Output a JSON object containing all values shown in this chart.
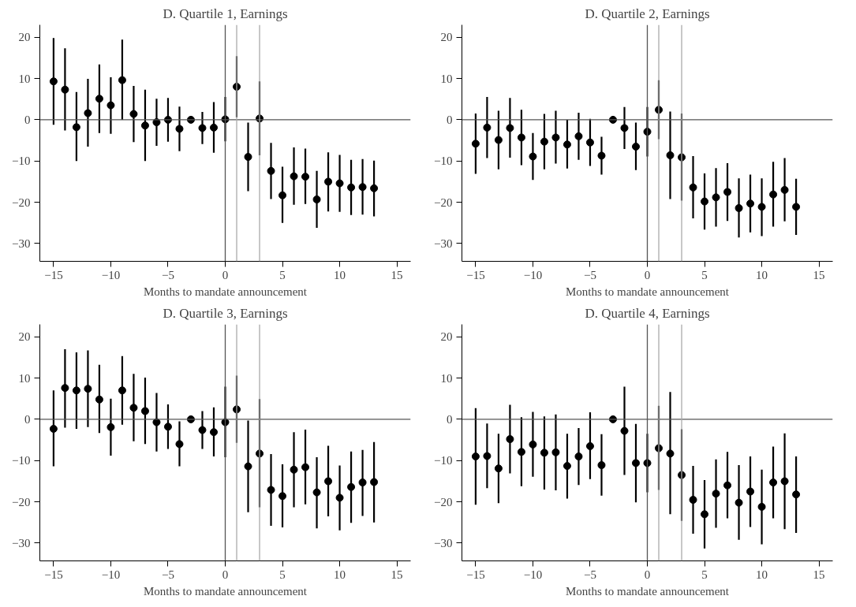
{
  "chart_data": [
    {
      "type": "scatter",
      "title": "D. Quartile 1, Earnings",
      "xlabel": "Months to mandate announcement",
      "marker": "circle",
      "color": "#000000",
      "x": [
        -15,
        -14,
        -13,
        -12,
        -11,
        -10,
        -9,
        -8,
        -7,
        -6,
        -5,
        -4,
        -3,
        -2,
        -1,
        0,
        1,
        2,
        3,
        4,
        5,
        6,
        7,
        8,
        9,
        10,
        11,
        12,
        13
      ],
      "values": [
        9.3,
        7.3,
        -1.8,
        1.6,
        5.1,
        3.5,
        9.6,
        1.4,
        -1.4,
        -0.6,
        0,
        -2.2,
        0,
        -2,
        -1.9,
        0.1,
        8,
        -9,
        0.3,
        -12.4,
        -18.3,
        -13.7,
        -13.8,
        -19.3,
        -15,
        -15.4,
        -16.4,
        -16.3,
        -16.6
      ],
      "errors": [
        [
          -1.2,
          19.8
        ],
        [
          -2.6,
          17.3
        ],
        [
          -10,
          6.7
        ],
        [
          -6.5,
          9.9
        ],
        [
          -3.2,
          13.4
        ],
        [
          -3.4,
          10.3
        ],
        [
          0,
          19.4
        ],
        [
          -5.4,
          8.2
        ],
        [
          -10,
          7.3
        ],
        [
          -6.3,
          5.1
        ],
        [
          -5.3,
          5.3
        ],
        [
          -7.6,
          3.2
        ],
        null,
        [
          -5.9,
          1.9
        ],
        [
          -8,
          4.3
        ],
        [
          -5.2,
          5.5
        ],
        [
          0.6,
          15.4
        ],
        [
          -17.3,
          -0.7
        ],
        [
          -8.6,
          9.3
        ],
        [
          -19.2,
          -5.6
        ],
        [
          -25,
          -11.4
        ],
        [
          -20.6,
          -6.7
        ],
        [
          -20.4,
          -7
        ],
        [
          -26.2,
          -12.4
        ],
        [
          -22.2,
          -7.9
        ],
        [
          -22.3,
          -8.5
        ],
        [
          -23.1,
          -9.7
        ],
        [
          -23,
          -9.5
        ],
        [
          -23.4,
          -9.9
        ]
      ],
      "xlim": [
        -16.2,
        16.2
      ],
      "xticks": [
        -15,
        -10,
        -5,
        0,
        5,
        10,
        15
      ],
      "ylim": [
        -34.3,
        23
      ],
      "yticks": [
        -30,
        -20,
        -10,
        0,
        10,
        20
      ],
      "ref_lines": [
        {
          "axis": "y",
          "value": 0,
          "color": "#555555"
        },
        {
          "axis": "x",
          "value": 0,
          "color": "#555555"
        },
        {
          "axis": "x",
          "value": 1,
          "color": "#aaaaaa"
        },
        {
          "axis": "x",
          "value": 3,
          "color": "#aaaaaa"
        }
      ]
    },
    {
      "type": "scatter",
      "title": "D. Quartile 2, Earnings",
      "xlabel": "Months to mandate announcement",
      "marker": "circle",
      "color": "#000000",
      "x": [
        -15,
        -14,
        -13,
        -12,
        -11,
        -10,
        -9,
        -8,
        -7,
        -6,
        -5,
        -4,
        -3,
        -2,
        -1,
        0,
        1,
        2,
        3,
        4,
        5,
        6,
        7,
        8,
        9,
        10,
        11,
        12,
        13
      ],
      "values": [
        -5.8,
        -1.9,
        -4.9,
        -2,
        -4.3,
        -8.9,
        -5.3,
        -4.3,
        -6,
        -4,
        -5.5,
        -8.7,
        0,
        -2,
        -6.5,
        -2.9,
        2.4,
        -8.6,
        -9.1,
        -16.4,
        -19.8,
        -18.8,
        -17.5,
        -21.4,
        -20.3,
        -21.1,
        -18.1,
        -17,
        -21.1
      ],
      "errors": [
        [
          -13.1,
          1.5
        ],
        [
          -9.3,
          5.5
        ],
        [
          -12,
          2.2
        ],
        [
          -9.2,
          5.3
        ],
        [
          -11,
          2.4
        ],
        [
          -14.6,
          -3.2
        ],
        [
          -12,
          1.4
        ],
        [
          -10.6,
          2.2
        ],
        [
          -11.8,
          0
        ],
        [
          -9.7,
          1.7
        ],
        [
          -11.2,
          0.2
        ],
        [
          -13.3,
          -4.1
        ],
        null,
        [
          -7.1,
          3.1
        ],
        [
          -12.2,
          -0.7
        ],
        [
          -8.9,
          3.1
        ],
        [
          -4.7,
          9.6
        ],
        [
          -19.2,
          2
        ],
        [
          -19.6,
          1.5
        ],
        [
          -23.9,
          -8.8
        ],
        [
          -26.6,
          -13
        ],
        [
          -25.9,
          -11.7
        ],
        [
          -24.5,
          -10.5
        ],
        [
          -28.5,
          -14.2
        ],
        [
          -27.3,
          -13.3
        ],
        [
          -28.2,
          -14.2
        ],
        [
          -25.9,
          -10.2
        ],
        [
          -24.6,
          -9.3
        ],
        [
          -27.9,
          -14.3
        ]
      ],
      "xlim": [
        -16.2,
        16.2
      ],
      "xticks": [
        -15,
        -10,
        -5,
        0,
        5,
        10,
        15
      ],
      "ylim": [
        -34.3,
        23
      ],
      "yticks": [
        -30,
        -20,
        -10,
        0,
        10,
        20
      ],
      "ref_lines": [
        {
          "axis": "y",
          "value": 0,
          "color": "#555555"
        },
        {
          "axis": "x",
          "value": 0,
          "color": "#555555"
        },
        {
          "axis": "x",
          "value": 1,
          "color": "#aaaaaa"
        },
        {
          "axis": "x",
          "value": 3,
          "color": "#aaaaaa"
        }
      ]
    },
    {
      "type": "scatter",
      "title": "D. Quartile 3, Earnings",
      "xlabel": "Months to mandate announcement",
      "marker": "circle",
      "color": "#000000",
      "x": [
        -15,
        -14,
        -13,
        -12,
        -11,
        -10,
        -9,
        -8,
        -7,
        -6,
        -5,
        -4,
        -3,
        -2,
        -1,
        0,
        1,
        2,
        3,
        4,
        5,
        6,
        7,
        8,
        9,
        10,
        11,
        12,
        13
      ],
      "values": [
        -2.3,
        7.6,
        7,
        7.4,
        4.8,
        -1.9,
        7,
        2.8,
        2,
        -0.7,
        -1.8,
        -6,
        0,
        -2.6,
        -3.1,
        -0.7,
        2.4,
        -11.4,
        -8.3,
        -17.1,
        -18.6,
        -12.2,
        -11.6,
        -17.7,
        -15,
        -19,
        -16.4,
        -15.3,
        -15.2
      ],
      "errors": [
        [
          -11.4,
          7
        ],
        [
          -2,
          17
        ],
        [
          -2.3,
          16.2
        ],
        [
          -1.9,
          16.7
        ],
        [
          -3.3,
          13.2
        ],
        [
          -8.8,
          5
        ],
        [
          -1.3,
          15.3
        ],
        [
          -5.3,
          11
        ],
        [
          -6,
          10.1
        ],
        [
          -7.8,
          6.4
        ],
        [
          -7.2,
          3.6
        ],
        [
          -11.4,
          -0.5
        ],
        null,
        [
          -7.2,
          2
        ],
        [
          -9,
          2.9
        ],
        [
          -9.2,
          7.9
        ],
        [
          -5.7,
          10.6
        ],
        [
          -22.5,
          -0.3
        ],
        [
          -21.3,
          4.9
        ],
        [
          -25.8,
          -8.4
        ],
        [
          -26.2,
          -10.9
        ],
        [
          -21.3,
          -3.1
        ],
        [
          -20.6,
          -2.5
        ],
        [
          -26.4,
          -9.2
        ],
        [
          -23.5,
          -6.4
        ],
        [
          -26.9,
          -11.2
        ],
        [
          -25.1,
          -7.8
        ],
        [
          -23.4,
          -7.4
        ],
        [
          -25,
          -5.5
        ]
      ],
      "xlim": [
        -16.2,
        16.2
      ],
      "xticks": [
        -15,
        -10,
        -5,
        0,
        5,
        10,
        15
      ],
      "ylim": [
        -34.3,
        23
      ],
      "yticks": [
        -30,
        -20,
        -10,
        0,
        10,
        20
      ],
      "ref_lines": [
        {
          "axis": "y",
          "value": 0,
          "color": "#555555"
        },
        {
          "axis": "x",
          "value": 0,
          "color": "#555555"
        },
        {
          "axis": "x",
          "value": 1,
          "color": "#aaaaaa"
        },
        {
          "axis": "x",
          "value": 3,
          "color": "#aaaaaa"
        }
      ]
    },
    {
      "type": "scatter",
      "title": "D. Quartile 4, Earnings",
      "xlabel": "Months to mandate announcement",
      "marker": "circle",
      "color": "#000000",
      "x": [
        -15,
        -14,
        -13,
        -12,
        -11,
        -10,
        -9,
        -8,
        -7,
        -6,
        -5,
        -4,
        -3,
        -2,
        -1,
        0,
        1,
        2,
        3,
        4,
        5,
        6,
        7,
        8,
        9,
        10,
        11,
        12,
        13
      ],
      "values": [
        -9,
        -8.9,
        -11.9,
        -4.8,
        -7.9,
        -6.1,
        -8.1,
        -8,
        -11.3,
        -9,
        -6.5,
        -11.1,
        0,
        -2.8,
        -10.6,
        -10.6,
        -7,
        -8.3,
        -13.5,
        -19.5,
        -23,
        -18,
        -16,
        -20.2,
        -17.5,
        -21.2,
        -15.3,
        -15,
        -18.2
      ],
      "errors": [
        [
          -20.7,
          2.7
        ],
        [
          -16.7,
          -1
        ],
        [
          -20.3,
          -3.5
        ],
        [
          -13.1,
          3.5
        ],
        [
          -16.2,
          0.5
        ],
        [
          -13.9,
          1.8
        ],
        [
          -17,
          0.7
        ],
        [
          -17.2,
          1.2
        ],
        [
          -19.2,
          -3.5
        ],
        [
          -15.9,
          -2.1
        ],
        [
          -14.5,
          1.7
        ],
        [
          -18.5,
          -3.6
        ],
        null,
        [
          -13.5,
          7.9
        ],
        [
          -20.1,
          -1.1
        ],
        [
          -17.7,
          -3.5
        ],
        [
          -17.1,
          3.3
        ],
        [
          -23,
          6.6
        ],
        [
          -24.6,
          -2.4
        ],
        [
          -27.7,
          -11.3
        ],
        [
          -31.3,
          -14.7
        ],
        [
          -26.3,
          -9.7
        ],
        [
          -24,
          -7.9
        ],
        [
          -29.2,
          -11.1
        ],
        [
          -26.1,
          -9
        ],
        [
          -30.3,
          -12.2
        ],
        [
          -24,
          -6.6
        ],
        [
          -26.6,
          -3.4
        ],
        [
          -27.5,
          -9
        ]
      ],
      "xlim": [
        -16.2,
        16.2
      ],
      "xticks": [
        -15,
        -10,
        -5,
        0,
        5,
        10,
        15
      ],
      "ylim": [
        -34.3,
        23
      ],
      "yticks": [
        -30,
        -20,
        -10,
        0,
        10,
        20
      ],
      "ref_lines": [
        {
          "axis": "y",
          "value": 0,
          "color": "#555555"
        },
        {
          "axis": "x",
          "value": 0,
          "color": "#555555"
        },
        {
          "axis": "x",
          "value": 1,
          "color": "#aaaaaa"
        },
        {
          "axis": "x",
          "value": 3,
          "color": "#aaaaaa"
        }
      ]
    }
  ]
}
